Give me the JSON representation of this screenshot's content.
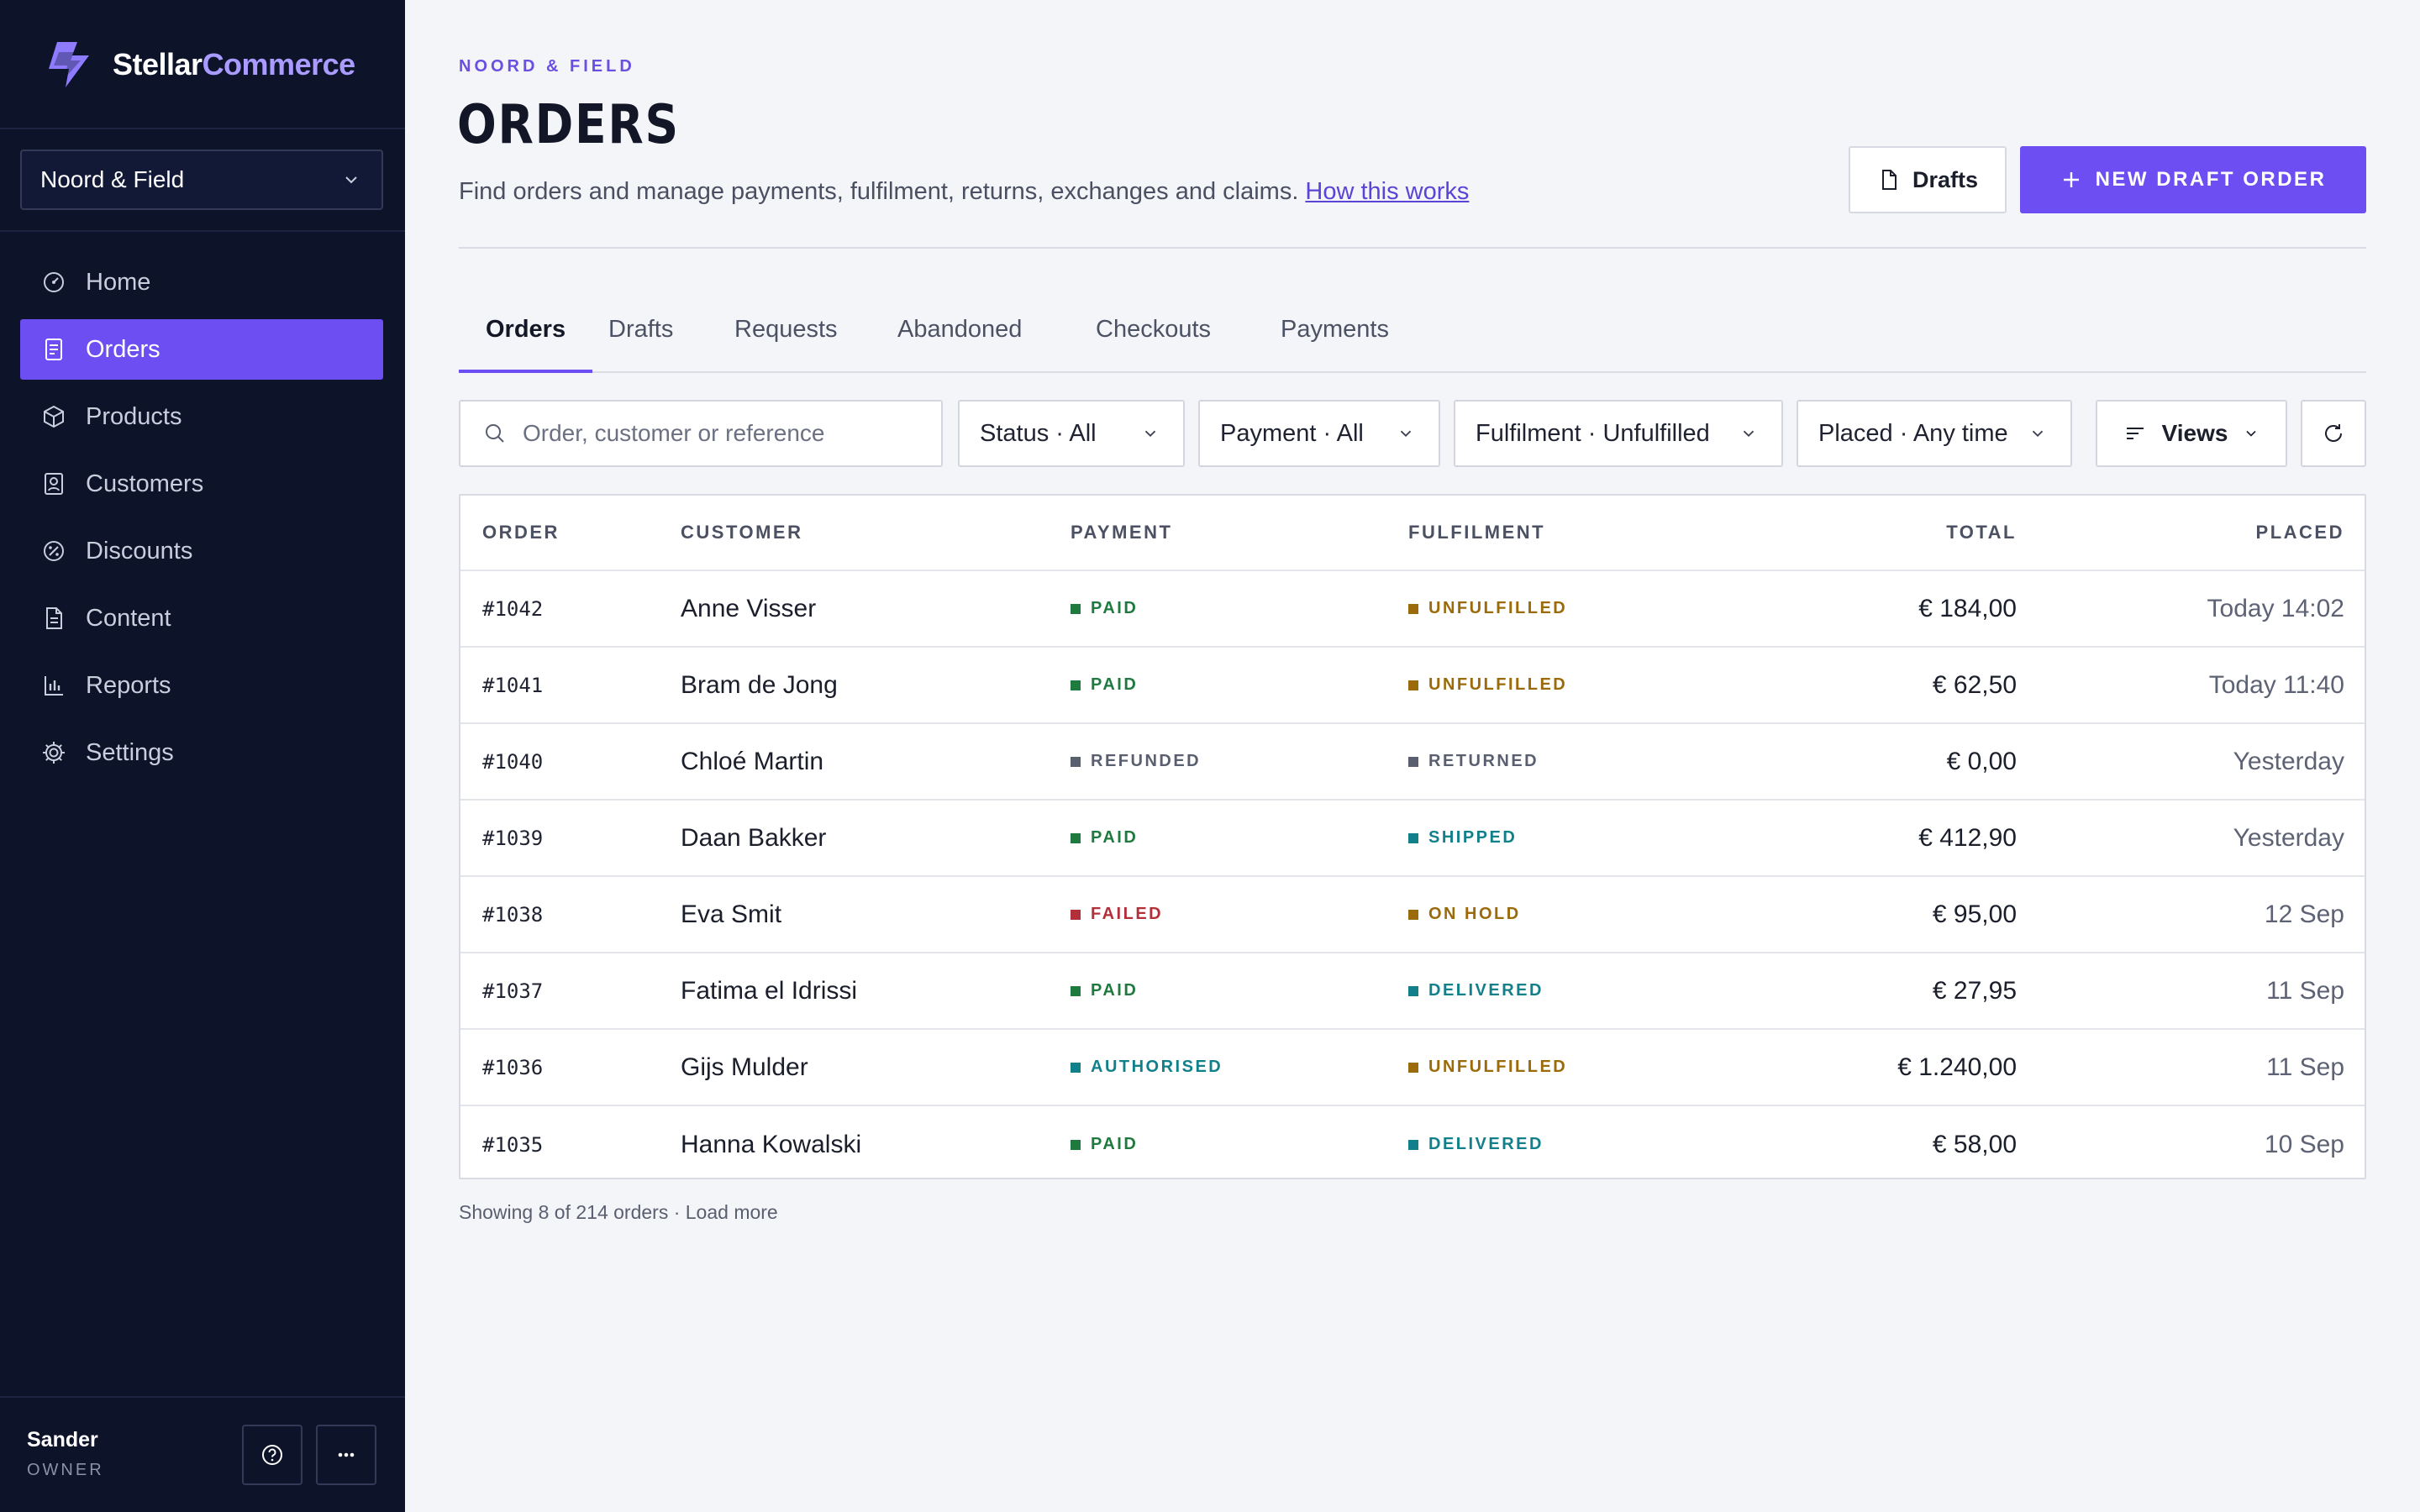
{
  "brand": {
    "name_main": "Stellar",
    "name_accent": "Commerce"
  },
  "store_selector": {
    "value": "Noord & Field"
  },
  "nav": [
    {
      "label": "Home",
      "icon": "dashboard-icon",
      "active": false
    },
    {
      "label": "Orders",
      "icon": "receipt-icon",
      "active": true
    },
    {
      "label": "Products",
      "icon": "box-icon",
      "active": false
    },
    {
      "label": "Customers",
      "icon": "user-card-icon",
      "active": false
    },
    {
      "label": "Discounts",
      "icon": "discount-icon",
      "active": false
    },
    {
      "label": "Content",
      "icon": "document-icon",
      "active": false
    },
    {
      "label": "Reports",
      "icon": "bar-chart-icon",
      "active": false
    },
    {
      "label": "Settings",
      "icon": "gear-icon",
      "active": false
    }
  ],
  "user": {
    "name": "Sander",
    "role": "OWNER"
  },
  "header": {
    "eyebrow": "NOORD & FIELD",
    "title": "ORDERS",
    "subtitle": "Find orders and manage payments, fulfilment, returns, exchanges and claims.",
    "help_link": "How this works",
    "drafts_button": "Drafts",
    "new_button": "NEW DRAFT ORDER"
  },
  "tabs": [
    {
      "label": "Orders",
      "active": true
    },
    {
      "label": "Drafts",
      "active": false
    },
    {
      "label": "Requests",
      "active": false
    },
    {
      "label": "Abandoned",
      "active": false
    },
    {
      "label": "Checkouts",
      "active": false
    },
    {
      "label": "Payments",
      "active": false
    }
  ],
  "filters": {
    "search_placeholder": "Order, customer or reference",
    "status": "Status · All",
    "payment": "Payment · All",
    "fulfilment": "Fulfilment · Unfulfilled",
    "placed": "Placed · Any time",
    "views": "Views"
  },
  "table": {
    "columns": {
      "order": "ORDER",
      "customer": "CUSTOMER",
      "payment": "PAYMENT",
      "fulfilment": "FULFILMENT",
      "total": "TOTAL",
      "placed": "PLACED"
    },
    "rows": [
      {
        "order": "#1042",
        "customer": "Anne Visser",
        "payment": "PAID",
        "fulfilment": "UNFULFILLED",
        "total": "€ 184,00",
        "placed": "Today 14:02"
      },
      {
        "order": "#1041",
        "customer": "Bram de Jong",
        "payment": "PAID",
        "fulfilment": "UNFULFILLED",
        "total": "€ 62,50",
        "placed": "Today 11:40"
      },
      {
        "order": "#1040",
        "customer": "Chloé Martin",
        "payment": "REFUNDED",
        "fulfilment": "RETURNED",
        "total": "€ 0,00",
        "placed": "Yesterday"
      },
      {
        "order": "#1039",
        "customer": "Daan Bakker",
        "payment": "PAID",
        "fulfilment": "SHIPPED",
        "total": "€ 412,90",
        "placed": "Yesterday"
      },
      {
        "order": "#1038",
        "customer": "Eva Smit",
        "payment": "FAILED",
        "fulfilment": "ON HOLD",
        "total": "€ 95,00",
        "placed": "12 Sep"
      },
      {
        "order": "#1037",
        "customer": "Fatima el Idrissi",
        "payment": "PAID",
        "fulfilment": "DELIVERED",
        "total": "€ 27,95",
        "placed": "11 Sep"
      },
      {
        "order": "#1036",
        "customer": "Gijs Mulder",
        "payment": "AUTHORISED",
        "fulfilment": "UNFULFILLED",
        "total": "€ 1.240,00",
        "placed": "11 Sep"
      },
      {
        "order": "#1035",
        "customer": "Hanna Kowalski",
        "payment": "PAID",
        "fulfilment": "DELIVERED",
        "total": "€ 58,00",
        "placed": "10 Sep"
      }
    ]
  },
  "footer_note": "Showing 8 of 214 orders · Load more",
  "colors": {
    "accent": "#6c4ef2",
    "sidebar_bg": "#0d1328",
    "status_paid": "#1f7a3f",
    "status_unfulfilled": "#9a6a0b",
    "status_neutral": "#5a5f70",
    "status_failed": "#b3303a",
    "status_teal": "#12808a"
  }
}
